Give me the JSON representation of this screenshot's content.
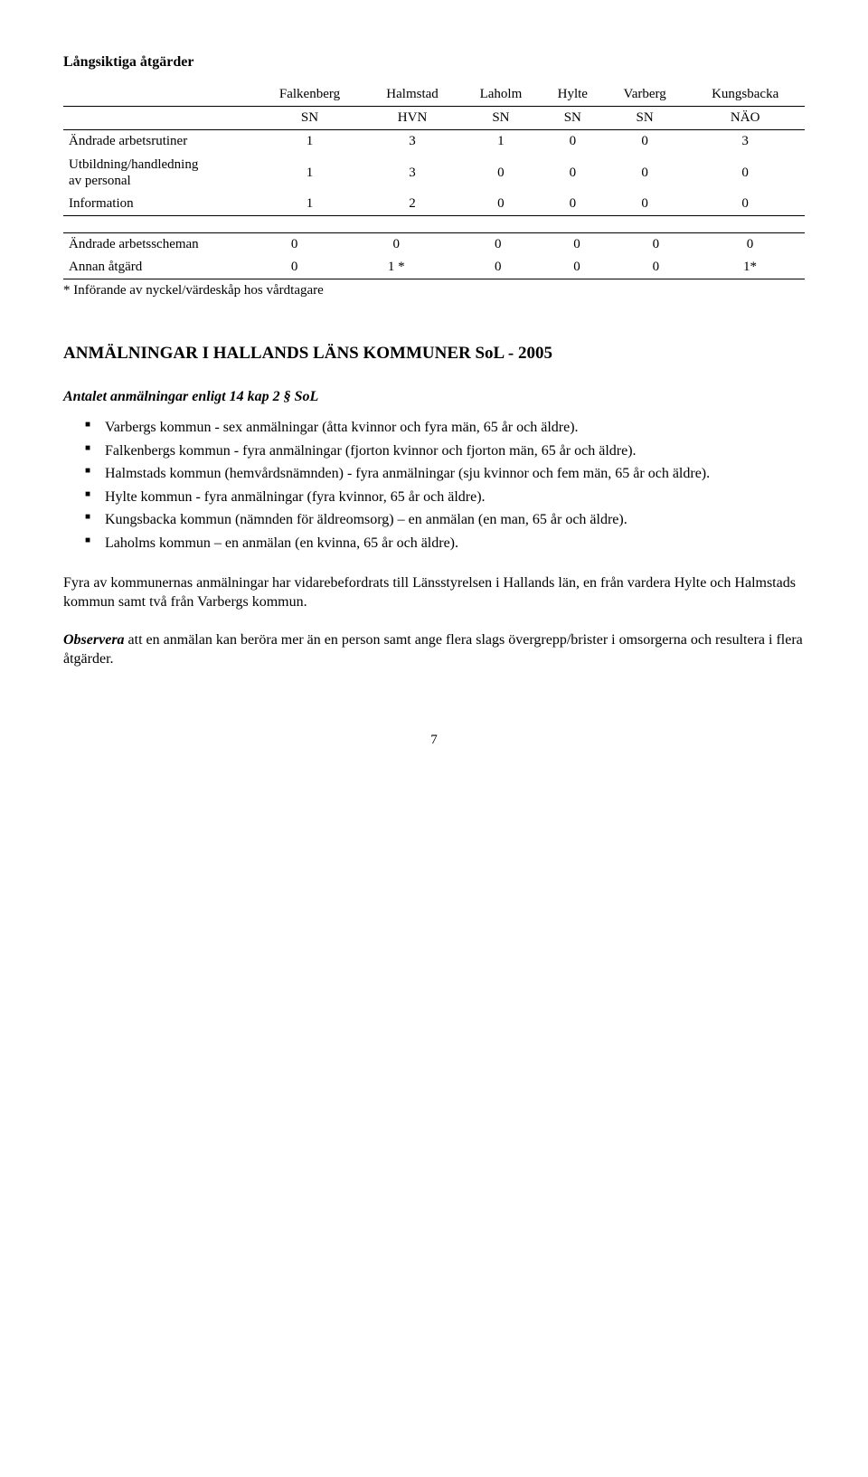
{
  "heading1": "Långsiktiga åtgärder",
  "table1": {
    "columns": [
      "Falkenberg",
      "Halmstad",
      "Laholm",
      "Hylte",
      "Varberg",
      "Kungsbacka"
    ],
    "subhead": [
      "SN",
      "HVN",
      "SN",
      "SN",
      "SN",
      "NÄO"
    ],
    "rows": [
      {
        "label": "Ändrade arbetsrutiner",
        "cells": [
          "1",
          "3",
          "1",
          "0",
          "0",
          "3"
        ]
      },
      {
        "label": "Utbildning/handledning\nav personal",
        "cells": [
          "1",
          "3",
          "0",
          "0",
          "0",
          "0"
        ]
      },
      {
        "label": "Information",
        "cells": [
          "1",
          "2",
          "0",
          "0",
          "0",
          "0"
        ]
      }
    ]
  },
  "table2": {
    "rows": [
      {
        "label": "Ändrade arbetsscheman",
        "cells": [
          "0",
          "0",
          "0",
          "0",
          "0",
          "0"
        ]
      },
      {
        "label": "Annan åtgärd",
        "cells": [
          "0",
          "1 *",
          "0",
          "0",
          "0",
          "1*"
        ]
      }
    ]
  },
  "footnote": "* Införande av nyckel/värdeskåp hos vårdtagare",
  "title2": "ANMÄLNINGAR I HALLANDS LÄNS KOMMUNER SoL - 2005",
  "subhead2": "Antalet anmälningar enligt 14 kap 2 § SoL",
  "bullets": [
    "Varbergs kommun - sex anmälningar (åtta kvinnor och fyra män, 65 år och äldre).",
    "Falkenbergs kommun - fyra anmälningar (fjorton kvinnor och fjorton män, 65 år och äldre).",
    "Halmstads kommun (hemvårdsnämnden) - fyra anmälningar (sju kvinnor och fem män, 65 år och äldre).",
    "Hylte kommun - fyra anmälningar (fyra kvinnor, 65 år och äldre).",
    "Kungsbacka kommun (nämnden för äldreomsorg) – en anmälan (en man, 65 år och äldre).",
    "Laholms kommun – en anmälan (en kvinna, 65 år och äldre)."
  ],
  "para1": "Fyra av kommunernas anmälningar har vidarebefordrats till Länsstyrelsen i Hallands län, en från vardera Hylte och Halmstads kommun samt två från Varbergs kommun.",
  "obs_label": "Observera",
  "para2_rest": " att en anmälan kan beröra mer än en person samt ange flera slags övergrepp/brister i omsorgerna och resultera i flera åtgärder.",
  "page_number": "7"
}
